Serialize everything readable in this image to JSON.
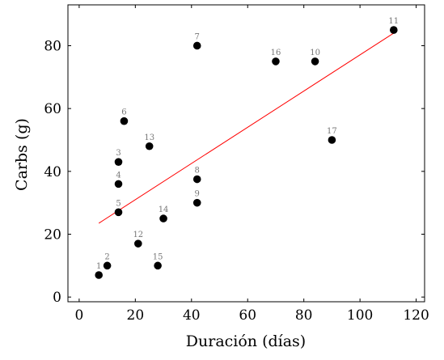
{
  "chart_data": {
    "type": "scatter",
    "title": "",
    "xlabel": "Duración (días)",
    "ylabel": "Carbs (g)",
    "xlim": [
      -4,
      123
    ],
    "ylim": [
      -1.5,
      93
    ],
    "x_ticks": [
      0,
      20,
      40,
      60,
      80,
      100,
      120
    ],
    "y_ticks": [
      0,
      20,
      40,
      60,
      80
    ],
    "grid": false,
    "legend": "none",
    "colors": {
      "points": "#000000",
      "trendline": "#ff0000",
      "point_labels": "#777777",
      "axes": "#000000"
    },
    "points": [
      {
        "label": "1",
        "x": 7,
        "y": 7
      },
      {
        "label": "2",
        "x": 10,
        "y": 10
      },
      {
        "label": "3",
        "x": 14,
        "y": 43
      },
      {
        "label": "4",
        "x": 14,
        "y": 36
      },
      {
        "label": "5",
        "x": 14,
        "y": 27
      },
      {
        "label": "6",
        "x": 16,
        "y": 56
      },
      {
        "label": "7",
        "x": 42,
        "y": 80
      },
      {
        "label": "8",
        "x": 42,
        "y": 37.5
      },
      {
        "label": "9",
        "x": 42,
        "y": 30
      },
      {
        "label": "10",
        "x": 84,
        "y": 75
      },
      {
        "label": "11",
        "x": 112,
        "y": 85
      },
      {
        "label": "12",
        "x": 21,
        "y": 17
      },
      {
        "label": "13",
        "x": 25,
        "y": 48
      },
      {
        "label": "14",
        "x": 30,
        "y": 25
      },
      {
        "label": "15",
        "x": 28,
        "y": 10
      },
      {
        "label": "16",
        "x": 70,
        "y": 75
      },
      {
        "label": "17",
        "x": 90,
        "y": 50
      }
    ],
    "trendline": {
      "x": [
        7,
        112
      ],
      "y": [
        23.5,
        84
      ]
    }
  }
}
